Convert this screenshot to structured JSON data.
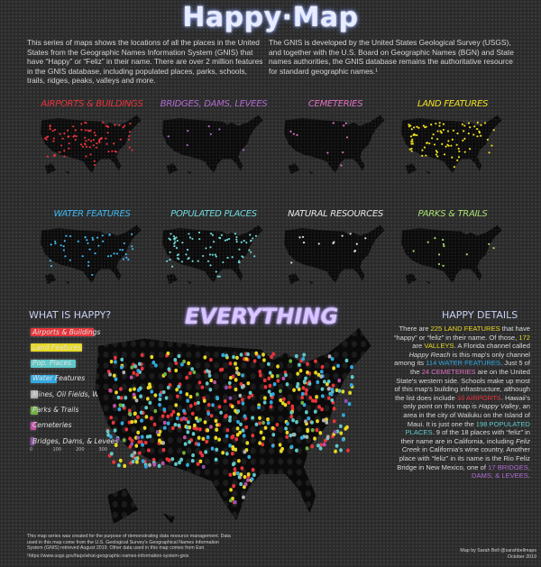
{
  "title": "Happy·Map",
  "intro_left": "This series of maps shows the locations of all the places in the United States from the Geographic Names Information System (GNIS) that have “Happy” or “Feliz” in their name. There are over 2 million features in the GNIS database, including populated places, parks, schools, trails, ridges, peaks, valleys and more.",
  "intro_right": "The GNIS is developed by the United States Geological Survey (USGS), and together with the U.S. Board on Geographic Names (BGN) and State names authorities, the GNIS database remains the authoritative resource for standard geographic names.¹",
  "small_maps": [
    {
      "label": "Airports & Buildings",
      "color": "#e8343a"
    },
    {
      "label": "Bridges, Dams, Levees",
      "color": "#b06ad0"
    },
    {
      "label": "Cemeteries",
      "color": "#e070c0"
    },
    {
      "label": "Land Features",
      "color": "#f0e020"
    },
    {
      "label": "Water Features",
      "color": "#3fb8f0"
    },
    {
      "label": "Populated Places",
      "color": "#70d8d8"
    },
    {
      "label": "Natural Resources",
      "color": "#e6e6e6"
    },
    {
      "label": "Parks & Trails",
      "color": "#a8e070"
    }
  ],
  "what_is_happy": {
    "title": "WHAT IS HAPPY?"
  },
  "everything_title": "EVERYTHING",
  "chart_data": {
    "type": "bar",
    "orientation": "horizontal",
    "title": "WHAT IS HAPPY?",
    "categories": [
      "Airports & Buildings",
      "Land Features",
      "Pop. Places",
      "Water Features",
      "Mines, Oil Fields, Wells",
      "Parks & Trails",
      "Cemeteries",
      "Bridges, Dams, & Levees"
    ],
    "values": [
      278,
      225,
      198,
      114,
      33,
      30,
      24,
      17
    ],
    "colors": [
      "#e8343a",
      "#e8d820",
      "#60c8c8",
      "#30a8e0",
      "#b0b0b0",
      "#70b040",
      "#c050a8",
      "#9050b0"
    ],
    "xlim": [
      0,
      300
    ],
    "xticks": [
      "0",
      "100",
      "200",
      "300"
    ],
    "grid": false
  },
  "details": {
    "title": "HAPPY DETAILS",
    "segments": [
      {
        "text": "There are "
      },
      {
        "text": "225 LAND FEATURES",
        "color": "#e8d820"
      },
      {
        "text": " that have “happy” or “feliz” in their name. Of those, "
      },
      {
        "text": "172",
        "color": "#e8d820"
      },
      {
        "text": " are "
      },
      {
        "text": "VALLEYS",
        "color": "#e8d820"
      },
      {
        "text": ". A Florida channel called "
      },
      {
        "text": "Happy Reach",
        "italic": true
      },
      {
        "text": " is this map's only channel among its "
      },
      {
        "text": "114 WATER FEATURES",
        "color": "#30a8e0"
      },
      {
        "text": ". Just 5 of the "
      },
      {
        "text": "24 CEMETERIES",
        "color": "#e070c0"
      },
      {
        "text": " are on the United State's western side. Schools make up most of this map's building infrastructure, although the list does include "
      },
      {
        "text": "10 AIRPORTS",
        "color": "#e8343a"
      },
      {
        "text": ". Hawaii's only point on this map is "
      },
      {
        "text": "Happy Valley",
        "italic": true
      },
      {
        "text": ", an area in the city of Wailuku on the Island of Maui. It is just one the "
      },
      {
        "text": "198 POPULATED PLACES",
        "color": "#60c8c8"
      },
      {
        "text": ". 9 of the 18 places with “feliz” in their name are in California, including "
      },
      {
        "text": "Feliz Creek",
        "italic": true
      },
      {
        "text": " in California's wine country. Another place with “feliz” in its name is the Rio Feliz Bridge in New Mexico, one of "
      },
      {
        "text": "17 BRIDGES, DAMS, & LEVEES",
        "color": "#b06ad0"
      },
      {
        "text": "."
      }
    ]
  },
  "footnote": "This map series was created for the purpose of demonstrating data resource management. Data used in this map come from the U.S. Geological Survey's Geographical Names Information System (GNIS) retrieved August 2019. Other data used in this map comes from Esri.",
  "footnote_url": "¹https://www.usgs.gov/faqs/what-geographic-names-information-system-gnis",
  "credit": {
    "line1": "Map by Sarah Bell @sarahbellmaps",
    "line2": "October 2019"
  }
}
